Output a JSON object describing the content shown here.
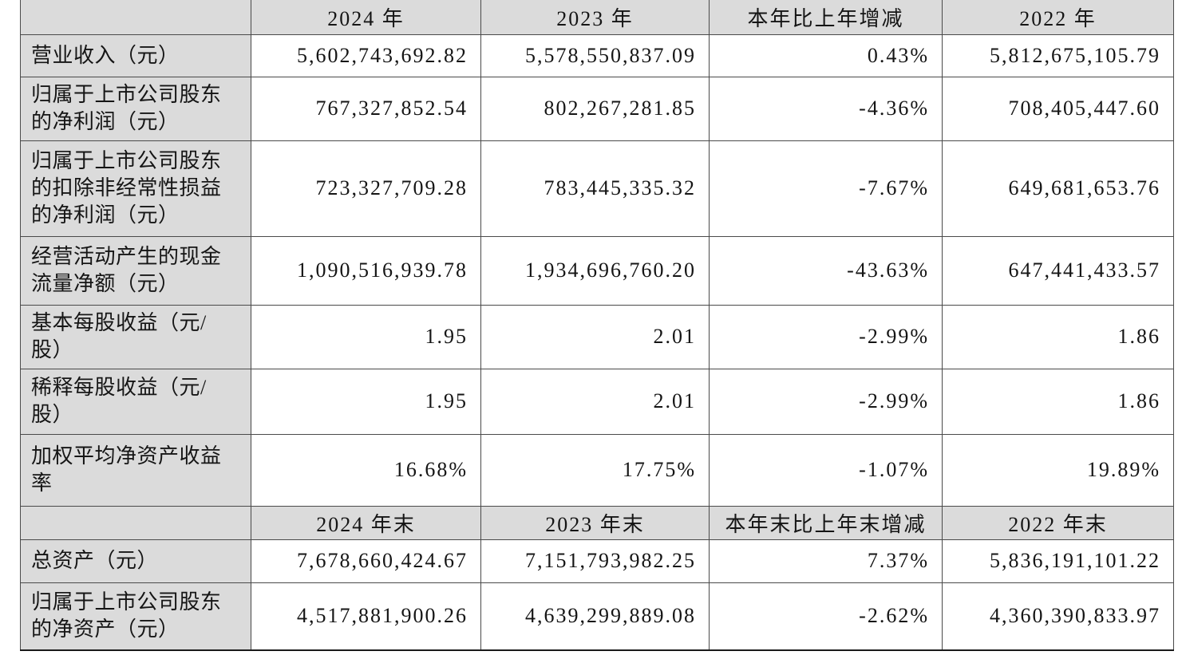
{
  "table": {
    "colors": {
      "header_bg": "#dbdbdb",
      "label_bg": "#dbdbdb",
      "cell_bg": "#ffffff",
      "border": "#4a4a4a",
      "text": "#151515"
    },
    "sections": [
      {
        "header": {
          "corner": "",
          "columns": [
            "2024 年",
            "2023 年",
            "本年比上年增减",
            "2022 年"
          ]
        },
        "rows": [
          {
            "label_lines": [
              "营业收入（元）"
            ],
            "values": [
              "5,602,743,692.82",
              "5,578,550,837.09",
              "0.43%",
              "5,812,675,105.79"
            ]
          },
          {
            "label_lines": [
              "归属于上市公司股东",
              "的净利润（元）"
            ],
            "values": [
              "767,327,852.54",
              "802,267,281.85",
              "-4.36%",
              "708,405,447.60"
            ]
          },
          {
            "label_lines": [
              "归属于上市公司股东",
              "的扣除非经常性损益",
              "的净利润（元）"
            ],
            "values": [
              "723,327,709.28",
              "783,445,335.32",
              "-7.67%",
              "649,681,653.76"
            ]
          },
          {
            "label_lines": [
              "经营活动产生的现金",
              "流量净额（元）"
            ],
            "values": [
              "1,090,516,939.78",
              "1,934,696,760.20",
              "-43.63%",
              "647,441,433.57"
            ]
          },
          {
            "label_lines": [
              "基本每股收益（元/",
              "股）"
            ],
            "values": [
              "1.95",
              "2.01",
              "-2.99%",
              "1.86"
            ]
          },
          {
            "label_lines": [
              "稀释每股收益（元/",
              "股）"
            ],
            "values": [
              "1.95",
              "2.01",
              "-2.99%",
              "1.86"
            ]
          },
          {
            "label_lines": [
              "加权平均净资产收益",
              "率"
            ],
            "values": [
              "16.68%",
              "17.75%",
              "-1.07%",
              "19.89%"
            ]
          }
        ]
      },
      {
        "header": {
          "corner": "",
          "columns": [
            "2024 年末",
            "2023 年末",
            "本年末比上年末增减",
            "2022 年末"
          ]
        },
        "rows": [
          {
            "label_lines": [
              "总资产（元）"
            ],
            "values": [
              "7,678,660,424.67",
              "7,151,793,982.25",
              "7.37%",
              "5,836,191,101.22"
            ]
          },
          {
            "label_lines": [
              "归属于上市公司股东",
              "的净资产（元）"
            ],
            "values": [
              "4,517,881,900.26",
              "4,639,299,889.08",
              "-2.62%",
              "4,360,390,833.97"
            ]
          }
        ]
      }
    ]
  }
}
